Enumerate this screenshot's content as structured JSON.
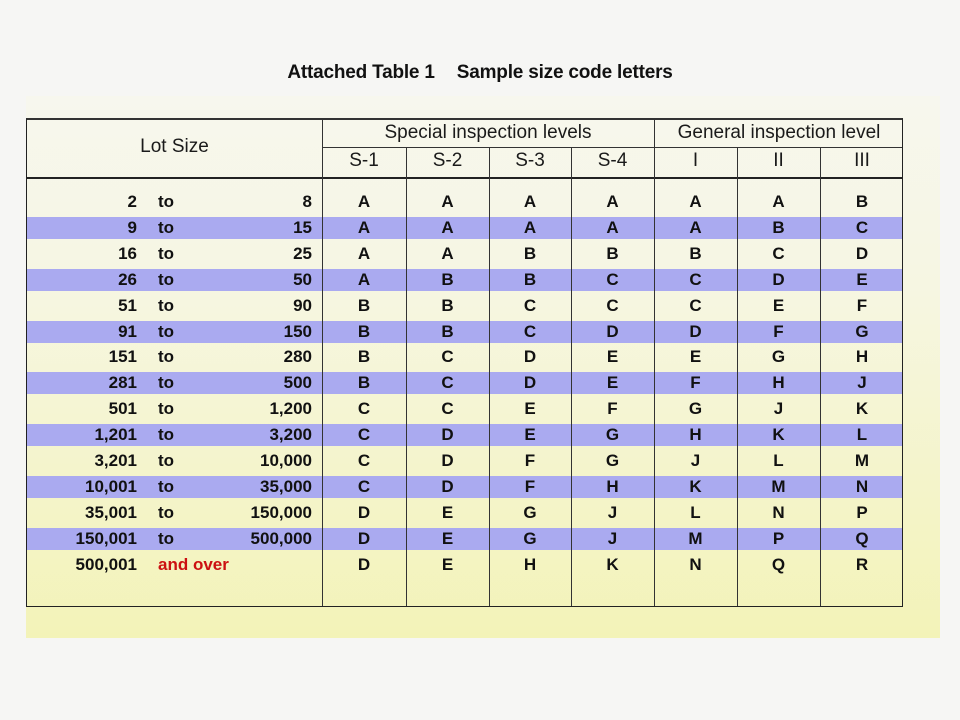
{
  "title": {
    "part1": "Attached Table 1",
    "part2": "Sample size code letters"
  },
  "headers": {
    "lot_size": "Lot Size",
    "special_group": "Special inspection levels",
    "general_group": "General inspection level",
    "columns": [
      "S-1",
      "S-2",
      "S-3",
      "S-4",
      "I",
      "II",
      "III"
    ]
  },
  "colors": {
    "band": "#aaaaf0",
    "panel": "#f4f4c8",
    "over_text": "#cc1111"
  },
  "rows": [
    {
      "from": "2",
      "to_word": "to",
      "to": "8",
      "codes": [
        "A",
        "A",
        "A",
        "A",
        "A",
        "A",
        "B"
      ]
    },
    {
      "from": "9",
      "to_word": "to",
      "to": "15",
      "codes": [
        "A",
        "A",
        "A",
        "A",
        "A",
        "B",
        "C"
      ]
    },
    {
      "from": "16",
      "to_word": "to",
      "to": "25",
      "codes": [
        "A",
        "A",
        "B",
        "B",
        "B",
        "C",
        "D"
      ]
    },
    {
      "from": "26",
      "to_word": "to",
      "to": "50",
      "codes": [
        "A",
        "B",
        "B",
        "C",
        "C",
        "D",
        "E"
      ]
    },
    {
      "from": "51",
      "to_word": "to",
      "to": "90",
      "codes": [
        "B",
        "B",
        "C",
        "C",
        "C",
        "E",
        "F"
      ]
    },
    {
      "from": "91",
      "to_word": "to",
      "to": "150",
      "codes": [
        "B",
        "B",
        "C",
        "D",
        "D",
        "F",
        "G"
      ]
    },
    {
      "from": "151",
      "to_word": "to",
      "to": "280",
      "codes": [
        "B",
        "C",
        "D",
        "E",
        "E",
        "G",
        "H"
      ]
    },
    {
      "from": "281",
      "to_word": "to",
      "to": "500",
      "codes": [
        "B",
        "C",
        "D",
        "E",
        "F",
        "H",
        "J"
      ]
    },
    {
      "from": "501",
      "to_word": "to",
      "to": "1,200",
      "codes": [
        "C",
        "C",
        "E",
        "F",
        "G",
        "J",
        "K"
      ]
    },
    {
      "from": "1,201",
      "to_word": "to",
      "to": "3,200",
      "codes": [
        "C",
        "D",
        "E",
        "G",
        "H",
        "K",
        "L"
      ]
    },
    {
      "from": "3,201",
      "to_word": "to",
      "to": "10,000",
      "codes": [
        "C",
        "D",
        "F",
        "G",
        "J",
        "L",
        "M"
      ]
    },
    {
      "from": "10,001",
      "to_word": "to",
      "to": "35,000",
      "codes": [
        "C",
        "D",
        "F",
        "H",
        "K",
        "M",
        "N"
      ]
    },
    {
      "from": "35,001",
      "to_word": "to",
      "to": "150,000",
      "codes": [
        "D",
        "E",
        "G",
        "J",
        "L",
        "N",
        "P"
      ]
    },
    {
      "from": "150,001",
      "to_word": "to",
      "to": "500,000",
      "codes": [
        "D",
        "E",
        "G",
        "J",
        "M",
        "P",
        "Q"
      ]
    },
    {
      "from": "500,001",
      "and_over": "and over",
      "codes": [
        "D",
        "E",
        "H",
        "K",
        "N",
        "Q",
        "R"
      ]
    }
  ]
}
